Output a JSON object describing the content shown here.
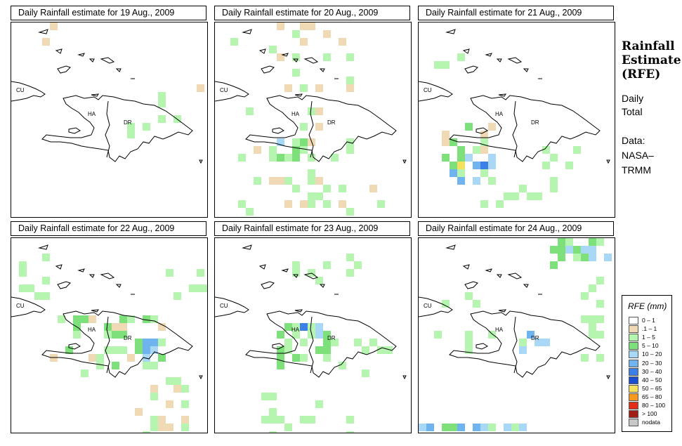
{
  "panels": [
    {
      "title": "Daily Rainfall estimate for  19 Aug., 2009"
    },
    {
      "title": "Daily Rainfall estimate for  20 Aug., 2009"
    },
    {
      "title": "Daily Rainfall estimate for  21 Aug., 2009"
    },
    {
      "title": "Daily Rainfall estimate for  22 Aug., 2009"
    },
    {
      "title": "Daily Rainfall estimate for  23 Aug., 2009"
    },
    {
      "title": "Daily Rainfall estimate for  24 Aug., 2009"
    }
  ],
  "country_labels": {
    "cuba": "CU",
    "haiti": "HA",
    "dominican_republic": "DR"
  },
  "sidebar": {
    "title_lines": [
      "Rainfall",
      "Estimate",
      "(RFE)"
    ],
    "subtitle_lines": [
      "Daily",
      "Total"
    ],
    "data_lines": [
      "Data:",
      "NASA–",
      "TRMM"
    ]
  },
  "legend": {
    "title": "RFE (mm)",
    "classes": [
      {
        "label": "0 – 1",
        "color": "#ffffff"
      },
      {
        "label": ".1 – 1",
        "color": "#f0d9b5"
      },
      {
        "label": "1 – 5",
        "color": "#b6f5b0"
      },
      {
        "label": "5 – 10",
        "color": "#7ee07a"
      },
      {
        "label": "10 – 20",
        "color": "#a8d8f5"
      },
      {
        "label": "20 – 30",
        "color": "#6fb4ef"
      },
      {
        "label": "30 – 40",
        "color": "#3c7fe6"
      },
      {
        "label": "40 – 50",
        "color": "#1a4fd0"
      },
      {
        "label": "50 – 65",
        "color": "#f5e060"
      },
      {
        "label": "65 – 80",
        "color": "#f59a20"
      },
      {
        "label": "80 – 100",
        "color": "#e03018"
      },
      {
        "label": "> 100",
        "color": "#a02018"
      },
      {
        "label": "nodata",
        "color": "#c8c8c8"
      }
    ]
  }
}
